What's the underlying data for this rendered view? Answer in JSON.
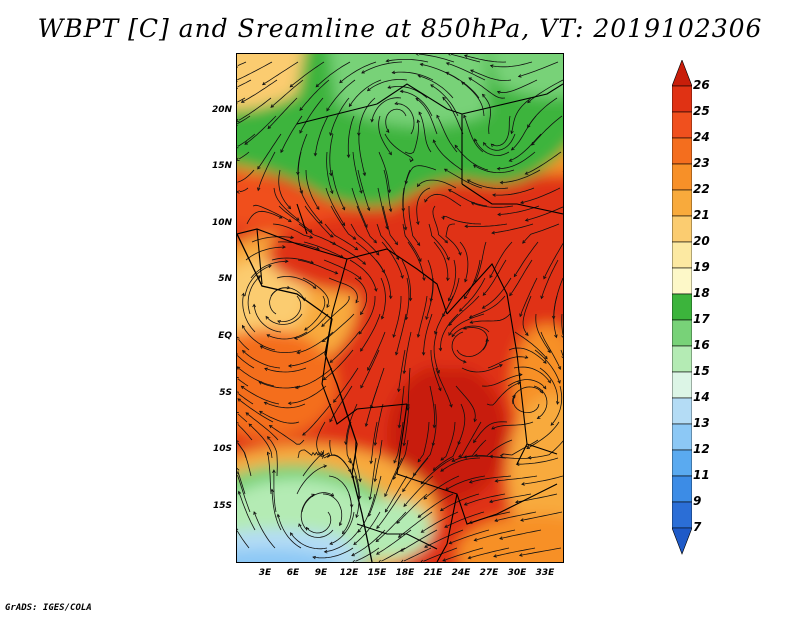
{
  "title": "WBPT [C] and Sreamline at 850hPa, VT: 2019102306",
  "map": {
    "y_ticks": [
      "20N",
      "15N",
      "10N",
      "5N",
      "EQ",
      "5S",
      "10S",
      "15S"
    ],
    "x_ticks": [
      "3E",
      "6E",
      "9E",
      "12E",
      "15E",
      "18E",
      "21E",
      "24E",
      "27E",
      "30E",
      "33E"
    ]
  },
  "colorbar": {
    "labels": [
      "26",
      "25",
      "24",
      "23",
      "22",
      "21",
      "20",
      "19",
      "18",
      "17",
      "16",
      "15",
      "14",
      "13",
      "12",
      "11",
      "9",
      "7"
    ],
    "colors": [
      "#c81e0a",
      "#e03214",
      "#f0501e",
      "#f46e1e",
      "#f79028",
      "#f8aa3c",
      "#fbcc70",
      "#fce9a2",
      "#fdf8c8",
      "#3cb43c",
      "#78d278",
      "#b4ebb4",
      "#dcf5e6",
      "#b4dcf5",
      "#8cc8f5",
      "#5aaaf0",
      "#3c8ce6",
      "#2b6ed6",
      "#1e5ac8"
    ]
  },
  "credit": "GrADS: IGES/COLA"
}
